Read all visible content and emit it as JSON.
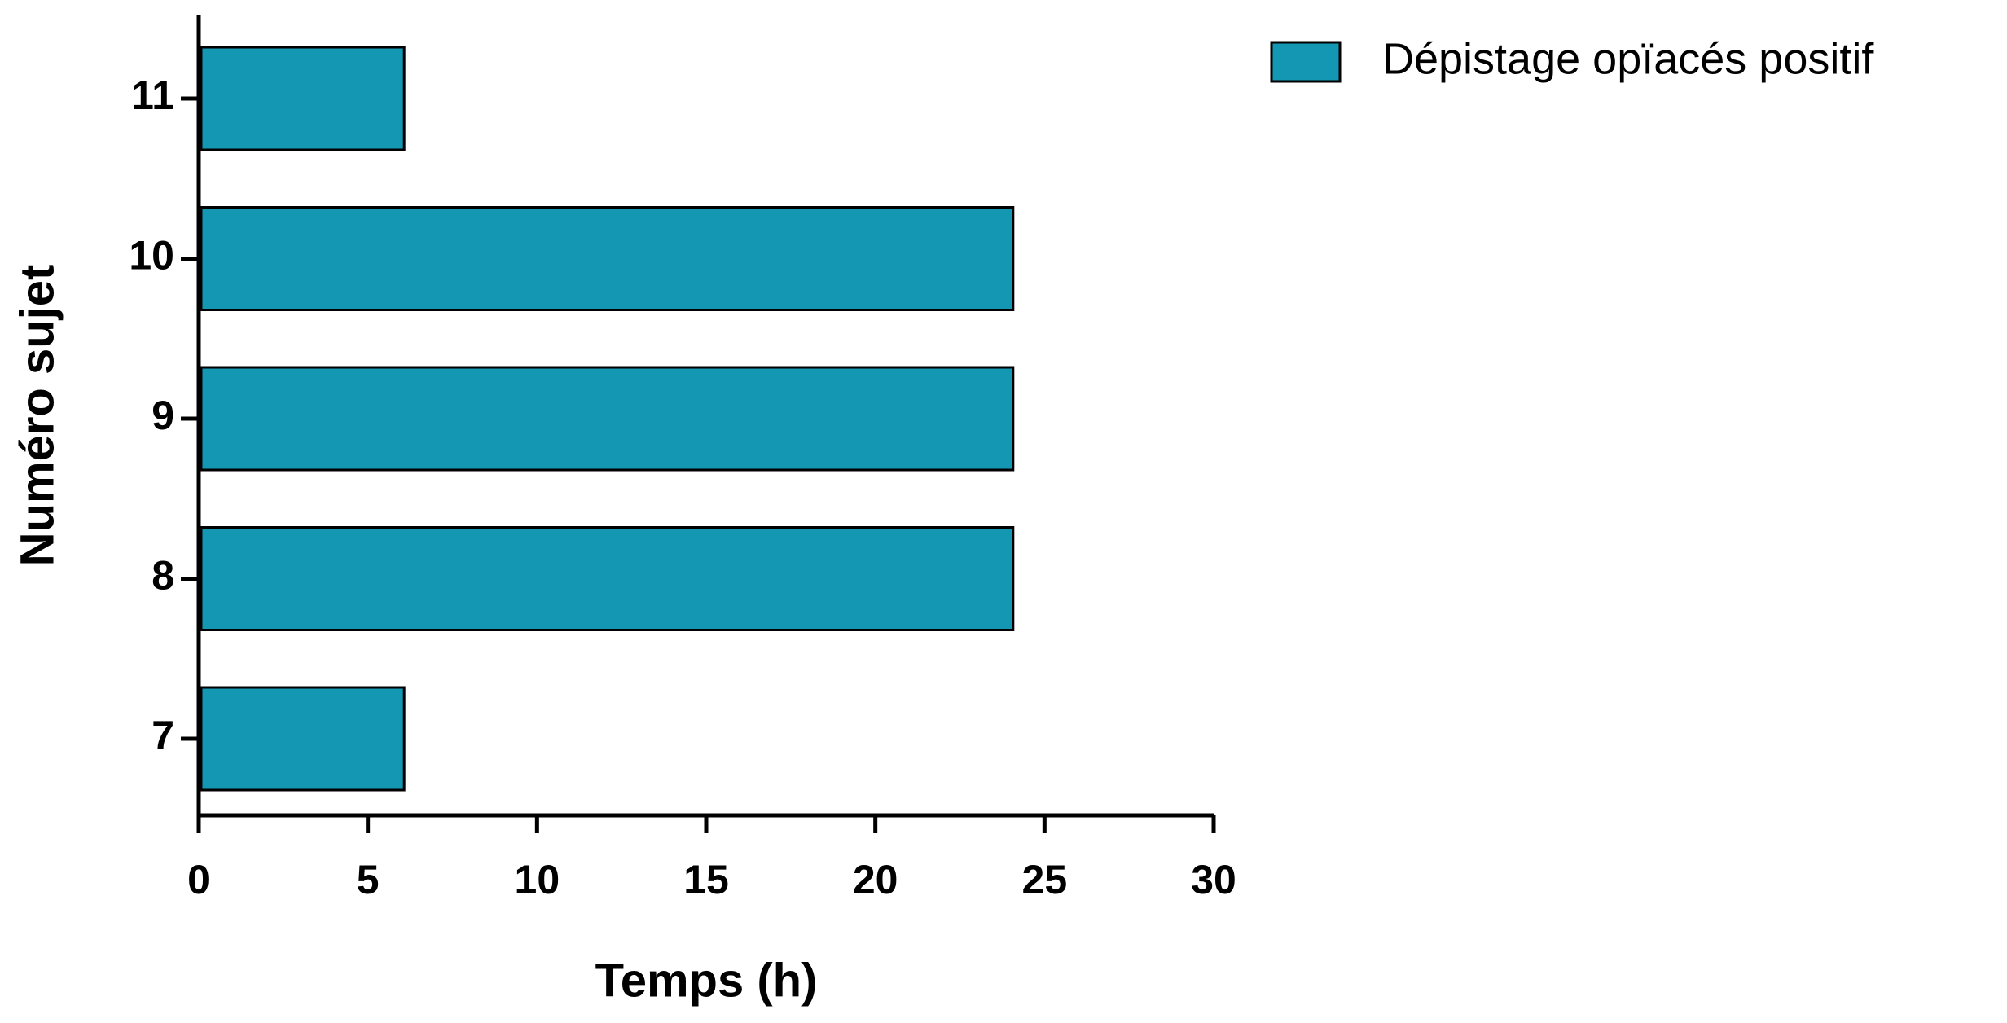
{
  "chart_data": {
    "type": "hbar",
    "x_label": "Temps (h)",
    "y_label": "Numéro sujet",
    "categories": [
      "7",
      "8",
      "9",
      "10",
      "11"
    ],
    "series": [
      {
        "name": "Dépistage opïacés positif",
        "color": "#1497b3",
        "values": [
          6,
          24,
          24,
          24,
          6
        ]
      }
    ],
    "xlim": [
      0,
      30
    ],
    "xticks": [
      0,
      5,
      10,
      15,
      20,
      25,
      30
    ],
    "legend": "top-right"
  }
}
